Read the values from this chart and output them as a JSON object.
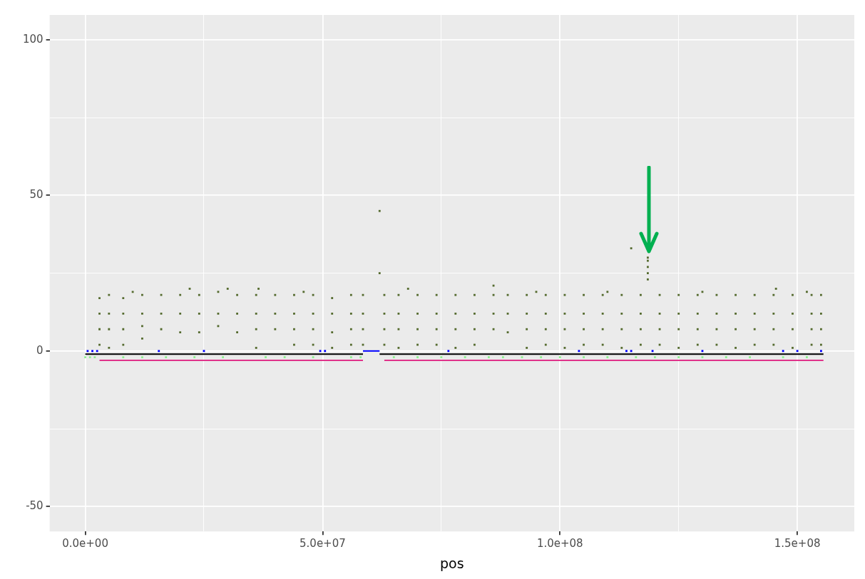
{
  "chart_data": {
    "type": "scatter",
    "xlabel": "pos",
    "xlim": [
      -7500000,
      162000000
    ],
    "ylim": [
      -58,
      108
    ],
    "xticks": [
      {
        "value": 0,
        "label": "0.0e+00"
      },
      {
        "value": 25000000,
        "label": null
      },
      {
        "value": 50000000,
        "label": "5.0e+07"
      },
      {
        "value": 75000000,
        "label": null
      },
      {
        "value": 100000000,
        "label": "1.0e+08"
      },
      {
        "value": 125000000,
        "label": null
      },
      {
        "value": 150000000,
        "label": "1.5e+08"
      }
    ],
    "yticks": [
      {
        "value": -50,
        "label": "-50"
      },
      {
        "value": -25,
        "label": null
      },
      {
        "value": 0,
        "label": "0"
      },
      {
        "value": 25,
        "label": null
      },
      {
        "value": 50,
        "label": "50"
      },
      {
        "value": 75,
        "label": null
      },
      {
        "value": 100,
        "label": "100"
      }
    ],
    "grid": true,
    "legend": false,
    "series": [
      {
        "marker": "square",
        "color": "#556b2f",
        "x": [
          3000000,
          3000000,
          3000000,
          3000000,
          5000000,
          5000000,
          5000000,
          5000000,
          8000000,
          8000000,
          8000000,
          8000000,
          12000000,
          12000000,
          12000000,
          12000000,
          16000000,
          16000000,
          16000000,
          20000000,
          20000000,
          20000000,
          24000000,
          24000000,
          24000000,
          28000000,
          28000000,
          28000000,
          32000000,
          32000000,
          32000000,
          36000000,
          36000000,
          36000000,
          36000000,
          40000000,
          40000000,
          40000000,
          44000000,
          44000000,
          44000000,
          44000000,
          48000000,
          48000000,
          48000000,
          48000000,
          52000000,
          52000000,
          52000000,
          52000000,
          56000000,
          56000000,
          56000000,
          56000000,
          58500000,
          58500000,
          58500000,
          58500000,
          63000000,
          63000000,
          63000000,
          63000000,
          66000000,
          66000000,
          66000000,
          66000000,
          70000000,
          70000000,
          70000000,
          70000000,
          74000000,
          74000000,
          74000000,
          74000000,
          78000000,
          78000000,
          78000000,
          78000000,
          82000000,
          82000000,
          82000000,
          82000000,
          86000000,
          86000000,
          86000000,
          89000000,
          89000000,
          89000000,
          93000000,
          93000000,
          93000000,
          93000000,
          97000000,
          97000000,
          97000000,
          97000000,
          101000000,
          101000000,
          101000000,
          101000000,
          105000000,
          105000000,
          105000000,
          105000000,
          109000000,
          109000000,
          109000000,
          109000000,
          113000000,
          113000000,
          113000000,
          113000000,
          117000000,
          117000000,
          117000000,
          117000000,
          121000000,
          121000000,
          121000000,
          121000000,
          125000000,
          125000000,
          125000000,
          125000000,
          129000000,
          129000000,
          129000000,
          129000000,
          133000000,
          133000000,
          133000000,
          133000000,
          137000000,
          137000000,
          137000000,
          137000000,
          141000000,
          141000000,
          141000000,
          141000000,
          145000000,
          145000000,
          145000000,
          145000000,
          149000000,
          149000000,
          149000000,
          149000000,
          153000000,
          153000000,
          153000000,
          153000000,
          155000000,
          155000000,
          155000000,
          155000000,
          10000000,
          22000000,
          30000000,
          36500000,
          46000000,
          68000000,
          86000000,
          95000000,
          110000000,
          130000000,
          145500000,
          152000000,
          62000000,
          62000000,
          115000000,
          118500000,
          118500000,
          118500000,
          118500000,
          118500000
        ],
        "values": [
          2,
          7,
          12,
          17,
          1,
          7,
          12,
          18,
          2,
          7,
          12,
          17,
          4,
          8,
          12,
          18,
          7,
          12,
          18,
          6,
          12,
          18,
          6,
          12,
          18,
          8,
          12,
          19,
          6,
          12,
          18,
          1,
          7,
          12,
          18,
          7,
          12,
          18,
          2,
          7,
          12,
          18,
          2,
          7,
          12,
          18,
          1,
          6,
          12,
          17,
          2,
          7,
          12,
          18,
          2,
          7,
          12,
          18,
          2,
          7,
          12,
          18,
          1,
          7,
          12,
          18,
          2,
          7,
          12,
          18,
          2,
          7,
          12,
          18,
          1,
          7,
          12,
          18,
          2,
          7,
          12,
          18,
          7,
          12,
          18,
          6,
          12,
          18,
          1,
          7,
          12,
          18,
          2,
          7,
          12,
          18,
          1,
          7,
          12,
          18,
          2,
          7,
          12,
          18,
          2,
          7,
          12,
          18,
          1,
          7,
          12,
          18,
          2,
          7,
          12,
          18,
          2,
          7,
          12,
          18,
          1,
          7,
          12,
          18,
          2,
          7,
          12,
          18,
          2,
          7,
          12,
          18,
          1,
          7,
          12,
          18,
          2,
          7,
          12,
          18,
          2,
          7,
          12,
          18,
          1,
          7,
          12,
          18,
          2,
          7,
          12,
          18,
          2,
          7,
          12,
          18,
          19,
          20,
          20,
          20,
          19,
          20,
          21,
          19,
          19,
          19,
          20,
          19,
          45,
          25,
          33,
          23,
          25,
          27,
          29,
          30
        ]
      },
      {
        "marker": "square",
        "color": "#90ee90",
        "x": [
          0,
          1000000,
          2000000,
          8000000,
          12000000,
          17000000,
          23000000,
          29000000,
          38000000,
          42000000,
          48000000,
          56000000,
          58000000,
          65000000,
          70000000,
          75000000,
          80000000,
          85000000,
          88000000,
          92000000,
          96000000,
          100000000,
          105000000,
          110000000,
          116000000,
          120000000,
          125000000,
          130000000,
          135000000,
          140000000,
          147000000,
          152000000
        ],
        "values": [
          -2,
          -2,
          -2,
          -2,
          -2,
          -2,
          -2,
          -2,
          -2,
          -2,
          -2,
          -2,
          -2,
          -2,
          -2,
          -2,
          -2,
          -2,
          -2,
          -2,
          -2,
          -2,
          -2,
          -2,
          -2,
          -2,
          -2,
          -2,
          -2,
          -2,
          -2,
          -2
        ]
      },
      {
        "marker": "square",
        "color": "#0000ff",
        "x": [
          500000,
          1500000,
          2500000,
          15500000,
          25000000,
          49500000,
          50500000,
          76500000,
          104000000,
          114000000,
          115000000,
          119500000,
          130000000,
          147000000,
          150000000,
          155000000
        ],
        "values": [
          0,
          0,
          0,
          0,
          0,
          0,
          0,
          0,
          0,
          0,
          0,
          0,
          0,
          0,
          0,
          0
        ]
      },
      {
        "type": "line",
        "marker": "none",
        "color": "#0000ff",
        "x": [
          58500000,
          62000000
        ],
        "values": [
          0,
          0
        ]
      },
      {
        "type": "line",
        "marker": "none",
        "color": "#000000",
        "x": [
          0,
          58500000,
          60000000,
          62000000,
          155500000
        ],
        "values": [
          -1,
          -1,
          null,
          -1,
          -1
        ]
      },
      {
        "type": "line",
        "marker": "none",
        "color": "#e0338a",
        "x": [
          3000000,
          58500000,
          60000000,
          63000000,
          155500000
        ],
        "values": [
          -3,
          -3,
          null,
          -3,
          -3
        ]
      }
    ]
  }
}
